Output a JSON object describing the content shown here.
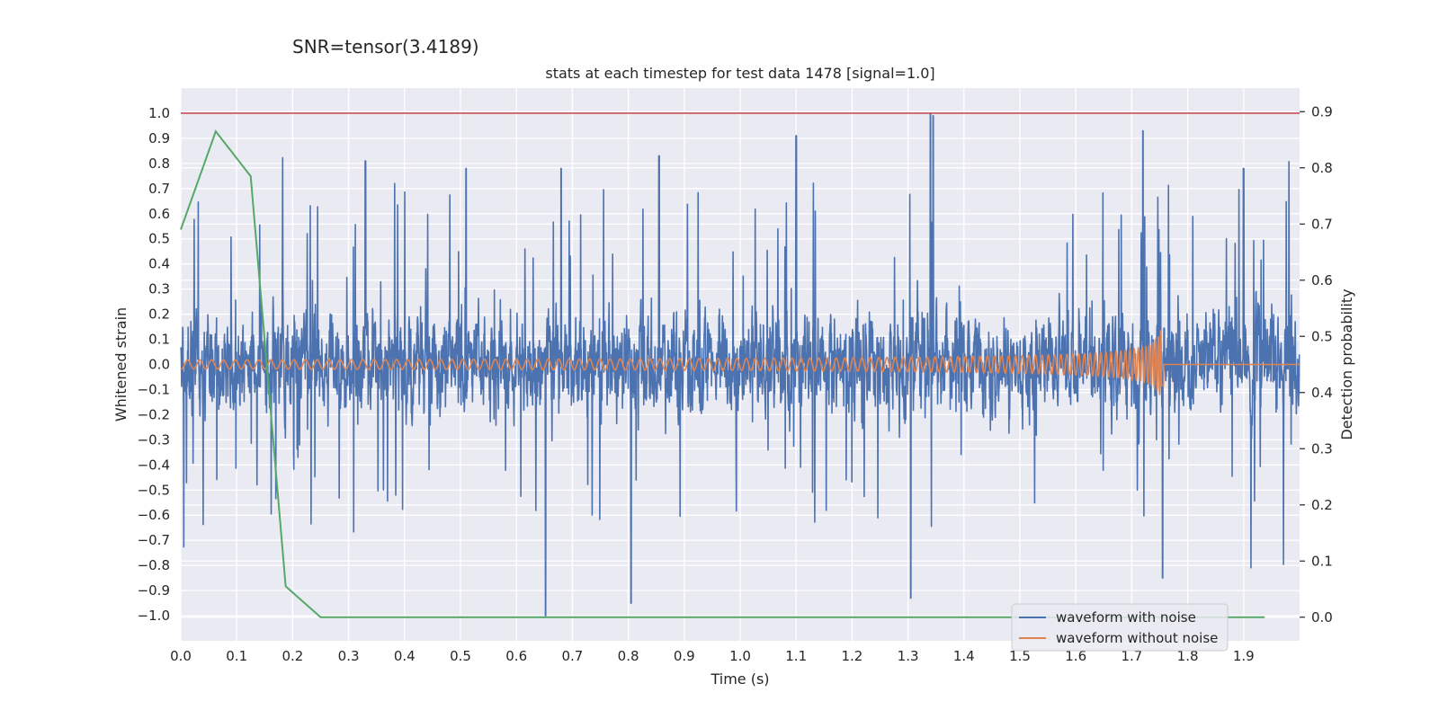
{
  "suptitle": "SNR=tensor(3.4189)",
  "chart_data": {
    "type": "line",
    "title": "stats at each timestep for test data 1478 [signal=1.0]",
    "xlabel": "Time (s)",
    "ylabel": "Whitened strain",
    "ylabel_right": "Detection probability",
    "xlim": [
      0.0,
      2.0
    ],
    "ylim": [
      -1.1,
      1.1
    ],
    "ylim_right": [
      -0.042,
      0.942
    ],
    "xticks": [
      "0.0",
      "0.1",
      "0.2",
      "0.3",
      "0.4",
      "0.5",
      "0.6",
      "0.7",
      "0.8",
      "0.9",
      "1.0",
      "1.1",
      "1.2",
      "1.3",
      "1.4",
      "1.5",
      "1.6",
      "1.7",
      "1.8",
      "1.9"
    ],
    "yticks": [
      "−1.0",
      "−0.9",
      "−0.8",
      "−0.7",
      "−0.6",
      "−0.5",
      "−0.4",
      "−0.3",
      "−0.2",
      "−0.1",
      "0.0",
      "0.1",
      "0.2",
      "0.3",
      "0.4",
      "0.5",
      "0.6",
      "0.7",
      "0.8",
      "0.9",
      "1.0"
    ],
    "yticks_right": [
      "0.0",
      "0.1",
      "0.2",
      "0.3",
      "0.4",
      "0.5",
      "0.6",
      "0.7",
      "0.8",
      "0.9"
    ],
    "grid": true,
    "legend_position": "lower-right",
    "threshold": {
      "y": 1.0,
      "color": "#c44e52"
    },
    "series": [
      {
        "name": "waveform with noise",
        "color": "#4c72b0",
        "axis": "left",
        "description": "whitened noisy strain sampled at ~2048 Hz, amplitude mostly within ±0.6 with peaks reaching about ±1.0",
        "notable_peaks": [
          [
            0.33,
            0.81
          ],
          [
            0.51,
            0.78
          ],
          [
            0.68,
            0.78
          ],
          [
            0.855,
            0.83
          ],
          [
            1.1,
            0.91
          ],
          [
            1.34,
            1.0
          ],
          [
            1.345,
            0.99
          ],
          [
            1.72,
            0.93
          ],
          [
            1.9,
            0.78
          ],
          [
            0.652,
            -1.0
          ],
          [
            0.805,
            -0.95
          ],
          [
            1.305,
            -0.93
          ],
          [
            1.755,
            -0.85
          ]
        ]
      },
      {
        "name": "waveform without noise",
        "color": "#dd8452",
        "axis": "left",
        "description": "chirp signal, amplitude ~0.02 rising to ~0.13 at merger near t=1.757 s, then zero",
        "merger_time": 1.757
      },
      {
        "name": "",
        "color": "#55a868",
        "axis": "right",
        "x": [
          0.0,
          0.0625,
          0.125,
          0.1875,
          0.25,
          0.3125,
          0.375,
          0.4375,
          0.5,
          0.5625,
          0.625,
          0.6875,
          0.75,
          0.8125,
          0.875,
          0.9375,
          1.0,
          1.0625,
          1.125,
          1.1875,
          1.25,
          1.3125,
          1.375,
          1.4375,
          1.5,
          1.5625,
          1.625,
          1.6875,
          1.75,
          1.8125,
          1.875,
          1.9375
        ],
        "values": [
          0.69,
          0.865,
          0.785,
          0.055,
          0.0,
          0.0,
          0.0,
          0.0,
          0.0,
          0.0,
          0.0,
          0.0,
          0.0,
          0.0,
          0.0,
          0.0,
          0.0,
          0.0,
          0.0,
          0.0,
          0.0,
          0.0,
          0.0,
          0.0,
          0.0,
          0.0,
          0.0,
          0.0,
          0.0,
          0.0,
          0.0,
          0.0
        ]
      }
    ]
  }
}
